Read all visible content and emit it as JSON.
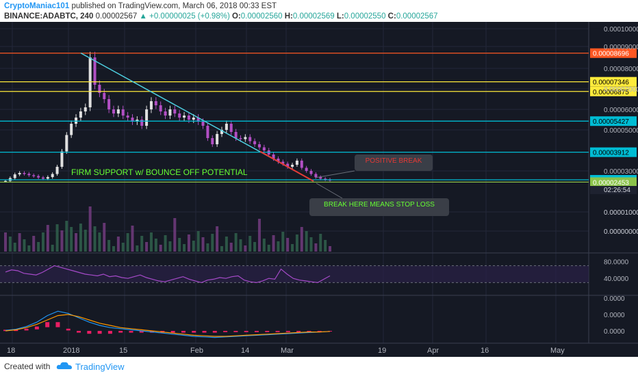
{
  "header": {
    "author": "CryptoManiac101",
    "published": "published on TradingView.com, March 06, 2018 00:33 EST",
    "symbol": "BINANCE:ADABTC, 240",
    "last": "0.00002567",
    "change": "+0.00000025 (+0.98%)",
    "o_label": "O:",
    "o": "0.00002560",
    "h_label": "H:",
    "h": "0.00002569",
    "l_label": "L:",
    "l": "0.00002550",
    "c_label": "C:",
    "c": "0.00002567"
  },
  "footer": {
    "created_with": "Created with",
    "brand": "TradingView"
  },
  "colors": {
    "background": "#151924",
    "candle_up": "#e0e0e0",
    "candle_down": "#b24fc4",
    "trendline": "#4dd0e1",
    "break_segment": "#e53935",
    "resistance_orange": "#ff5722",
    "level_yellow": "#ffeb3b",
    "level_cyan": "#00bcd4",
    "support_green": "#8bc34a",
    "rsi": "#a64ac9",
    "macd": "#2196f3",
    "signal": "#ff9800",
    "histogram": "#e91e63"
  },
  "chart_data": {
    "type": "candlestick",
    "symbol": "BINANCE:ADABTC",
    "interval": "240",
    "price_axis": {
      "ticks": [
        "0.00010000",
        "0.00009000",
        "0.00008000",
        "0.00007000",
        "0.00006000",
        "0.00005000",
        "0.00003000",
        "0.00001000",
        "0.00000000"
      ],
      "range": [
        0.0,
        0.0001
      ],
      "values": [
        0.0001,
        9e-05,
        8e-05,
        7e-05,
        6e-05,
        5e-05,
        3e-05,
        1e-05,
        0.0
      ]
    },
    "time_axis": {
      "ticks": [
        "18",
        "2018",
        "15",
        "Feb",
        "14",
        "Mar",
        "19",
        "Apr",
        "16",
        "May"
      ]
    },
    "horizontal_levels": [
      {
        "label": "0.00008696",
        "value": 8.696e-05,
        "color": "#ff5722"
      },
      {
        "label": "0.00007346",
        "value": 7.346e-05,
        "color": "#ffeb3b"
      },
      {
        "label": "0.00006875",
        "value": 6.875e-05,
        "color": "#ffeb3b"
      },
      {
        "label": "0.00005427",
        "value": 5.427e-05,
        "color": "#00bcd4"
      },
      {
        "label": "0.00003912",
        "value": 3.912e-05,
        "color": "#00bcd4"
      },
      {
        "label": "0.00002567",
        "value": 2.567e-05,
        "color": "#00bcd4"
      },
      {
        "label": "0.00002453",
        "value": 2.453e-05,
        "color": "#8bc34a"
      }
    ],
    "countdown": "02:26:54",
    "annotations": {
      "support": "FIRM SUPPORT w/ BOUNCE OFF POTENTIAL",
      "positive_break": "POSITIVE BREAK",
      "stop_loss": "BREAK HERE MEANS STOP LOSS"
    },
    "price_series": [
      2.51e-05,
      2.65e-05,
      2.83e-05,
      2.9e-05,
      2.86e-05,
      2.79e-05,
      2.75e-05,
      2.68e-05,
      2.62e-05,
      2.7e-05,
      2.85e-05,
      3.2e-05,
      3.95e-05,
      4.75e-05,
      5.3e-05,
      5.6e-05,
      5.9e-05,
      6.1e-05,
      8.5e-05,
      7.2e-05,
      6.8e-05,
      6.5e-05,
      6e-05,
      5.8e-05,
      6e-05,
      5.7e-05,
      5.6e-05,
      5.4e-05,
      5.5e-05,
      5.2e-05,
      6e-05,
      6.4e-05,
      6.2e-05,
      5.9e-05,
      5.7e-05,
      6e-05,
      5.8e-05,
      5.6e-05,
      5.7e-05,
      5.5e-05,
      5.6e-05,
      5.4e-05,
      5.2e-05,
      4.6e-05,
      4.3e-05,
      4.8e-05,
      5e-05,
      5.3e-05,
      4.9e-05,
      4.6e-05,
      4.55e-05,
      4.65e-05,
      4.45e-05,
      4.3e-05,
      4.15e-05,
      4e-05,
      3.8e-05,
      3.6e-05,
      3.45e-05,
      3.35e-05,
      3.2e-05,
      3.3e-05,
      3.5e-05,
      3.15e-05,
      3e-05,
      2.85e-05,
      2.7e-05,
      2.62e-05,
      2.58e-05,
      2.56e-05
    ],
    "volume_axis": {
      "ticks": [
        "0.00001000",
        "0.00000000"
      ]
    },
    "rsi": {
      "ticks": [
        "80.0000",
        "40.0000"
      ],
      "bands": [
        70,
        30
      ],
      "range": [
        0,
        100
      ],
      "values": [
        55,
        60,
        58,
        52,
        50,
        48,
        54,
        62,
        70,
        66,
        62,
        58,
        54,
        50,
        48,
        46,
        50,
        44,
        46,
        42,
        40,
        44,
        48,
        42,
        38,
        34,
        32,
        36,
        40,
        44,
        38,
        34,
        30,
        36,
        38,
        42,
        40,
        44,
        46,
        36,
        32,
        30,
        34,
        40,
        38,
        62,
        50,
        40,
        36,
        34,
        32,
        30,
        38,
        46
      ]
    },
    "macd": {
      "ticks": [
        "0.0000",
        "0.0000",
        "0.0000"
      ],
      "macd_values": [
        0.1,
        0.3,
        0.8,
        1.6,
        2.8,
        3.6,
        3.2,
        2.4,
        1.6,
        1.0,
        0.6,
        0.4,
        0.2,
        0.0,
        -0.2,
        -0.4,
        -0.6,
        -0.8,
        -1.0,
        -1.1,
        -1.2,
        -1.1,
        -1.0,
        -0.9,
        -0.8,
        -0.7,
        -0.6,
        -0.5,
        -0.4,
        -0.3,
        -0.2,
        -0.1
      ],
      "signal_values": [
        0.0,
        0.2,
        0.6,
        1.2,
        2.0,
        2.8,
        3.0,
        2.6,
        2.0,
        1.4,
        1.0,
        0.6,
        0.4,
        0.2,
        0.0,
        -0.2,
        -0.4,
        -0.6,
        -0.8,
        -0.9,
        -1.0,
        -1.0,
        -0.9,
        -0.8,
        -0.7,
        -0.6,
        -0.5,
        -0.4,
        -0.3,
        -0.2,
        -0.2,
        -0.1
      ]
    }
  }
}
